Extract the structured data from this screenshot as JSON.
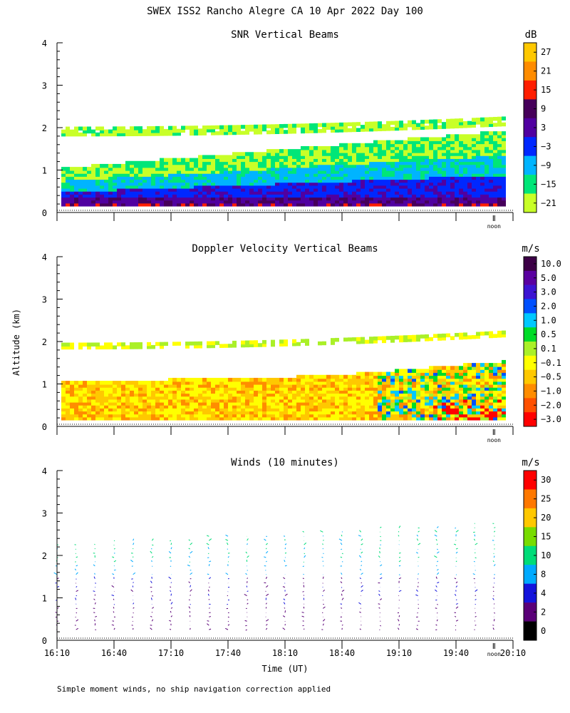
{
  "page_title": "SWEX ISS2 Rancho Alegre CA  10 Apr 2022 Day 100",
  "ylabel": "Altitude (km)",
  "xlabel": "Time (UT)",
  "footnote": "Simple moment winds, no ship navigation correction applied",
  "noon_label": "noon",
  "noon_time": 20.0,
  "time_range": [
    16.1667,
    20.1667
  ],
  "xtick_labels": [
    "16:10",
    "16:40",
    "17:10",
    "17:40",
    "18:10",
    "18:40",
    "19:10",
    "19:40",
    "20:10"
  ],
  "chart_data": [
    {
      "id": "snr",
      "type": "heatmap",
      "title": "SNR Vertical Beams",
      "ylabel": "Altitude (km)",
      "ylim": [
        0,
        4
      ],
      "yticks": [
        "0",
        "1",
        "2",
        "3",
        "4"
      ],
      "colorbar": {
        "unit": "dB",
        "labels": [
          "27",
          "21",
          "15",
          "9",
          "3",
          "−3",
          "−9",
          "−15",
          "−21"
        ],
        "colors": [
          "#ffc800",
          "#ff8c00",
          "#ff1e00",
          "#46005a",
          "#5000a0",
          "#0028ff",
          "#00b4ff",
          "#00e678",
          "#c8ff28"
        ]
      },
      "bands": [
        {
          "from": 0.15,
          "to": 0.3,
          "value": 12
        },
        {
          "from": 0.3,
          "to": 0.7,
          "value": 4
        },
        {
          "from": 0.7,
          "to": 1.0,
          "value": -6
        },
        {
          "from": 1.0,
          "to": 1.2,
          "value": -15
        },
        {
          "from": 1.8,
          "to": 1.95,
          "value": -18
        }
      ]
    },
    {
      "id": "doppler",
      "type": "heatmap",
      "title": "Doppler Velocity Vertical Beams",
      "ylabel": "Altitude (km)",
      "ylim": [
        0,
        4
      ],
      "yticks": [
        "0",
        "1",
        "2",
        "3",
        "4"
      ],
      "colorbar": {
        "unit": "m/s",
        "labels": [
          "10.0",
          "5.0",
          "3.0",
          "2.0",
          "1.0",
          "0.5",
          "0.1",
          "−0.1",
          "−0.5",
          "−1.0",
          "−2.0",
          "−3.0"
        ],
        "colors": [
          "#3c0046",
          "#5a00a0",
          "#3c14d2",
          "#0050ff",
          "#00c8ff",
          "#00dc28",
          "#aaf028",
          "#ffff00",
          "#ffc800",
          "#ff8c00",
          "#ff5000",
          "#ff0000"
        ]
      }
    },
    {
      "id": "winds",
      "type": "scatter",
      "title": "Winds (10 minutes)",
      "ylabel": "Altitude (km)",
      "ylim": [
        0,
        4
      ],
      "yticks": [
        "0",
        "1",
        "2",
        "3",
        "4"
      ],
      "x": [
        "16:10",
        "16:20",
        "16:30",
        "16:40",
        "16:50",
        "17:00",
        "17:10",
        "17:20",
        "17:30",
        "17:40",
        "17:50",
        "18:00",
        "18:10",
        "18:20",
        "18:30",
        "18:40",
        "18:50",
        "19:00",
        "19:10",
        "19:20",
        "19:30",
        "19:40",
        "19:50",
        "20:00"
      ],
      "colorbar": {
        "unit": "m/s",
        "labels": [
          "30",
          "25",
          "20",
          "15",
          "10",
          "8",
          "4",
          "2",
          "0"
        ],
        "colors": [
          "#ff0000",
          "#ff7800",
          "#ffc800",
          "#78dc00",
          "#00dc78",
          "#00aaff",
          "#1414dc",
          "#5a0078",
          "#000000"
        ]
      }
    }
  ]
}
